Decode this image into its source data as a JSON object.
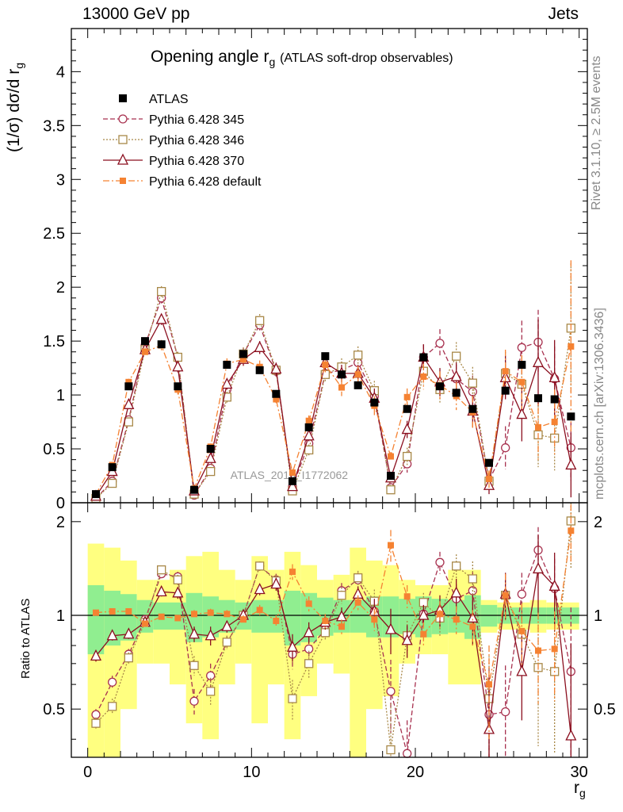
{
  "header": {
    "left": "13000 GeV pp",
    "right": "Jets"
  },
  "side_labels": {
    "rivet": "Rivet 3.1.10, ≥ 2.5M events",
    "mcplots": "mcplots.cern.ch [arXiv:1306.3436]"
  },
  "watermark": "ATLAS_2019_I1772062",
  "colors": {
    "data": "#000000",
    "p345": "#a83250",
    "p346": "#a88848",
    "p370": "#8b0f1f",
    "pdef": "#f58232",
    "band_inner": "#90ee90",
    "band_outer": "#ffff80"
  },
  "chart_data": [
    {
      "type": "scatter",
      "title": "Opening angle r",
      "title_sub": "g",
      "title_suffix": "(ATLAS soft-drop observables)",
      "ylabel": "(1/σ) dσ/d r",
      "ylabel_sub": "g",
      "xlim": [
        -1,
        30.5
      ],
      "ylim": [
        0,
        4.4
      ],
      "yticks": [
        0,
        0.5,
        1,
        1.5,
        2,
        2.5,
        3,
        3.5,
        4
      ],
      "ytick_labels": [
        "0",
        "0.5",
        "1",
        "1.5",
        "2",
        "2.5",
        "3",
        "3.5",
        "4"
      ],
      "x": [
        0.5,
        1.5,
        2.5,
        3.5,
        4.5,
        5.5,
        6.5,
        7.5,
        8.5,
        9.5,
        10.5,
        11.5,
        12.5,
        13.5,
        14.5,
        15.5,
        16.5,
        17.5,
        18.5,
        19.5,
        20.5,
        21.5,
        22.5,
        23.5,
        24.5,
        25.5,
        26.5,
        27.5,
        28.5,
        29.5
      ],
      "legend": [
        {
          "key": "atlas",
          "label": "ATLAS"
        },
        {
          "key": "p345",
          "label": "Pythia 6.428 345"
        },
        {
          "key": "p346",
          "label": "Pythia 6.428 346"
        },
        {
          "key": "p370",
          "label": "Pythia 6.428 370"
        },
        {
          "key": "pdef",
          "label": "Pythia 6.428 default"
        }
      ],
      "series": [
        {
          "key": "atlas",
          "name": "ATLAS",
          "values": [
            0.08,
            0.33,
            1.08,
            1.5,
            1.47,
            1.08,
            0.12,
            0.5,
            1.28,
            1.38,
            1.23,
            1.01,
            0.2,
            0.7,
            1.36,
            1.19,
            1.09,
            0.93,
            0.25,
            0.87,
            1.35,
            1.08,
            1.02,
            0.87,
            0.37,
            1.04,
            1.28,
            0.97,
            0.96,
            0.8
          ]
        },
        {
          "key": "p345",
          "name": "Pythia 6.428 345",
          "values": [
            0.04,
            0.2,
            0.77,
            1.46,
            1.9,
            1.35,
            0.07,
            0.32,
            1.05,
            1.38,
            1.65,
            1.22,
            0.15,
            0.55,
            1.2,
            1.23,
            1.3,
            0.99,
            0.14,
            0.36,
            1.35,
            1.48,
            1.15,
            1.03,
            0.21,
            0.51,
            1.44,
            1.49,
            1.15,
            0.51
          ],
          "errors": [
            0.01,
            0.02,
            0.03,
            0.04,
            0.05,
            0.05,
            0.01,
            0.03,
            0.05,
            0.06,
            0.06,
            0.06,
            0.02,
            0.05,
            0.07,
            0.08,
            0.08,
            0.09,
            0.04,
            0.08,
            0.12,
            0.13,
            0.13,
            0.15,
            0.08,
            0.2,
            0.25,
            0.3,
            0.3,
            0.3
          ]
        },
        {
          "key": "p346",
          "name": "Pythia 6.428 346",
          "values": [
            0.04,
            0.18,
            0.75,
            1.42,
            1.96,
            1.35,
            0.08,
            0.29,
            0.98,
            1.38,
            1.69,
            1.23,
            0.11,
            0.49,
            1.19,
            1.26,
            1.37,
            1.04,
            0.12,
            0.43,
            1.22,
            1.05,
            1.36,
            1.11,
            0.2,
            1.2,
            1.1,
            0.63,
            0.6,
            1.62
          ],
          "errors": [
            0.01,
            0.02,
            0.03,
            0.04,
            0.05,
            0.05,
            0.01,
            0.03,
            0.05,
            0.06,
            0.06,
            0.06,
            0.02,
            0.05,
            0.07,
            0.08,
            0.08,
            0.09,
            0.04,
            0.08,
            0.12,
            0.13,
            0.13,
            0.15,
            0.08,
            0.2,
            0.25,
            0.3,
            0.3,
            0.6
          ]
        },
        {
          "key": "p370",
          "name": "Pythia 6.428 370",
          "values": [
            0.06,
            0.29,
            0.91,
            1.42,
            1.7,
            1.26,
            0.11,
            0.41,
            1.1,
            1.33,
            1.44,
            1.24,
            0.15,
            0.62,
            1.3,
            1.2,
            1.2,
            0.97,
            0.23,
            0.68,
            1.35,
            1.12,
            1.17,
            0.85,
            0.16,
            1.16,
            0.82,
            1.3,
            1.16,
            0.35
          ],
          "errors": [
            0.01,
            0.02,
            0.03,
            0.04,
            0.05,
            0.05,
            0.01,
            0.03,
            0.05,
            0.06,
            0.06,
            0.06,
            0.02,
            0.05,
            0.07,
            0.08,
            0.08,
            0.09,
            0.04,
            0.08,
            0.12,
            0.13,
            0.13,
            0.15,
            0.08,
            0.2,
            0.25,
            0.4,
            0.35,
            0.3
          ]
        },
        {
          "key": "pdef",
          "name": "Pythia 6.428 default",
          "values": [
            0.08,
            0.35,
            1.12,
            1.4,
            1.46,
            1.05,
            0.13,
            0.52,
            1.29,
            1.33,
            1.26,
            0.96,
            0.28,
            0.76,
            1.28,
            1.07,
            1.19,
            0.9,
            0.43,
            0.98,
            1.17,
            1.09,
            0.99,
            0.84,
            0.22,
            1.22,
            1.12,
            0.7,
            0.75,
            1.45
          ],
          "errors": [
            0.01,
            0.02,
            0.03,
            0.04,
            0.05,
            0.05,
            0.01,
            0.03,
            0.05,
            0.06,
            0.06,
            0.06,
            0.02,
            0.05,
            0.07,
            0.08,
            0.08,
            0.09,
            0.04,
            0.08,
            0.12,
            0.13,
            0.13,
            0.15,
            0.08,
            0.2,
            0.25,
            0.3,
            0.3,
            0.8
          ]
        }
      ]
    },
    {
      "type": "scatter",
      "title": "Ratio to ATLAS",
      "ylabel": "Ratio to ATLAS",
      "xlabel": "r",
      "xlabel_sub": "g",
      "xlim": [
        -1,
        30.5
      ],
      "ylim": [
        0.35,
        2.3
      ],
      "xticks": [
        0,
        10,
        20,
        30
      ],
      "xtick_labels": [
        "0",
        "10",
        "20",
        "30"
      ],
      "yticks": [
        0.5,
        1,
        2
      ],
      "ytick_labels": [
        "0.5",
        "1",
        "2"
      ],
      "x": [
        0.5,
        1.5,
        2.5,
        3.5,
        4.5,
        5.5,
        6.5,
        7.5,
        8.5,
        9.5,
        10.5,
        11.5,
        12.5,
        13.5,
        14.5,
        15.5,
        16.5,
        17.5,
        18.5,
        19.5,
        20.5,
        21.5,
        22.5,
        23.5,
        24.5,
        25.5,
        26.5,
        27.5,
        28.5,
        29.5
      ],
      "band_inner": [
        0.25,
        0.2,
        0.17,
        0.12,
        0.1,
        0.1,
        0.18,
        0.15,
        0.12,
        0.1,
        0.12,
        0.12,
        0.2,
        0.18,
        0.14,
        0.12,
        0.12,
        0.15,
        0.15,
        0.13,
        0.15,
        0.13,
        0.12,
        0.16,
        0.08,
        0.06,
        0.06,
        0.06,
        0.06,
        0.06
      ],
      "band_outer": [
        0.7,
        0.65,
        0.5,
        0.3,
        0.3,
        0.4,
        0.55,
        0.6,
        0.4,
        0.3,
        0.55,
        0.4,
        0.6,
        0.45,
        0.3,
        0.35,
        0.65,
        0.5,
        0.45,
        0.3,
        0.25,
        0.25,
        0.4,
        0.4,
        0.12,
        0.1,
        0.1,
        0.12,
        0.1,
        0.1
      ],
      "series": [
        {
          "key": "p345",
          "name": "Pythia 6.428 345",
          "values": [
            0.48,
            0.61,
            0.75,
            0.97,
            1.36,
            1.33,
            0.53,
            0.64,
            0.82,
            1.0,
            1.44,
            1.3,
            0.75,
            0.78,
            0.9,
            1.2,
            1.3,
            1.03,
            0.57,
            0.36,
            1.01,
            1.48,
            1.13,
            1.2,
            0.48,
            0.49,
            1.17,
            1.62,
            1.22,
            0.66
          ],
          "errors": [
            0.02,
            0.03,
            0.03,
            0.03,
            0.04,
            0.05,
            0.05,
            0.06,
            0.04,
            0.04,
            0.05,
            0.06,
            0.08,
            0.07,
            0.05,
            0.07,
            0.07,
            0.1,
            0.15,
            0.1,
            0.08,
            0.12,
            0.13,
            0.18,
            0.2,
            0.2,
            0.2,
            0.3,
            0.3,
            0.4
          ]
        },
        {
          "key": "p346",
          "name": "Pythia 6.428 346",
          "values": [
            0.45,
            0.51,
            0.73,
            0.95,
            1.4,
            1.3,
            0.69,
            0.57,
            0.82,
            1.0,
            1.44,
            1.29,
            0.54,
            0.7,
            0.88,
            1.16,
            1.32,
            1.11,
            0.37,
            0.86,
            1.1,
            0.98,
            1.44,
            1.31,
            0.54,
            1.16,
            0.87,
            0.68,
            0.66,
            2.01
          ],
          "errors": [
            0.02,
            0.03,
            0.03,
            0.03,
            0.04,
            0.05,
            0.05,
            0.06,
            0.04,
            0.04,
            0.05,
            0.06,
            0.08,
            0.07,
            0.05,
            0.07,
            0.07,
            0.1,
            0.15,
            0.1,
            0.08,
            0.12,
            0.13,
            0.18,
            0.2,
            0.2,
            0.2,
            0.3,
            0.3,
            0.6
          ]
        },
        {
          "key": "p370",
          "name": "Pythia 6.428 370",
          "values": [
            0.74,
            0.86,
            0.87,
            0.95,
            1.19,
            1.18,
            0.87,
            0.86,
            0.92,
            1.0,
            1.21,
            1.26,
            0.79,
            0.88,
            0.95,
            0.99,
            1.17,
            1.03,
            0.9,
            0.83,
            1.0,
            1.04,
            1.18,
            0.98,
            0.43,
            1.17,
            0.66,
            1.41,
            1.24,
            0.41
          ],
          "errors": [
            0.03,
            0.03,
            0.03,
            0.03,
            0.04,
            0.05,
            0.05,
            0.06,
            0.04,
            0.04,
            0.05,
            0.06,
            0.08,
            0.07,
            0.05,
            0.07,
            0.07,
            0.1,
            0.15,
            0.1,
            0.08,
            0.12,
            0.13,
            0.18,
            0.2,
            0.2,
            0.2,
            0.4,
            0.35,
            0.4
          ]
        },
        {
          "key": "pdef",
          "name": "Pythia 6.428 default",
          "values": [
            1.02,
            1.03,
            1.03,
            0.94,
            0.99,
            0.98,
            1.01,
            1.02,
            1.01,
            0.97,
            1.04,
            0.96,
            1.38,
            1.09,
            0.96,
            0.92,
            1.1,
            0.97,
            1.68,
            1.15,
            0.87,
            1.01,
            0.97,
            0.92,
            0.6,
            1.16,
            0.89,
            0.77,
            0.78,
            1.87
          ],
          "errors": [
            0.02,
            0.02,
            0.02,
            0.02,
            0.02,
            0.02,
            0.03,
            0.03,
            0.03,
            0.03,
            0.04,
            0.04,
            0.08,
            0.06,
            0.05,
            0.05,
            0.06,
            0.08,
            0.2,
            0.1,
            0.08,
            0.1,
            0.1,
            0.12,
            0.2,
            0.2,
            0.2,
            0.25,
            0.25,
            0.4
          ]
        }
      ]
    }
  ]
}
